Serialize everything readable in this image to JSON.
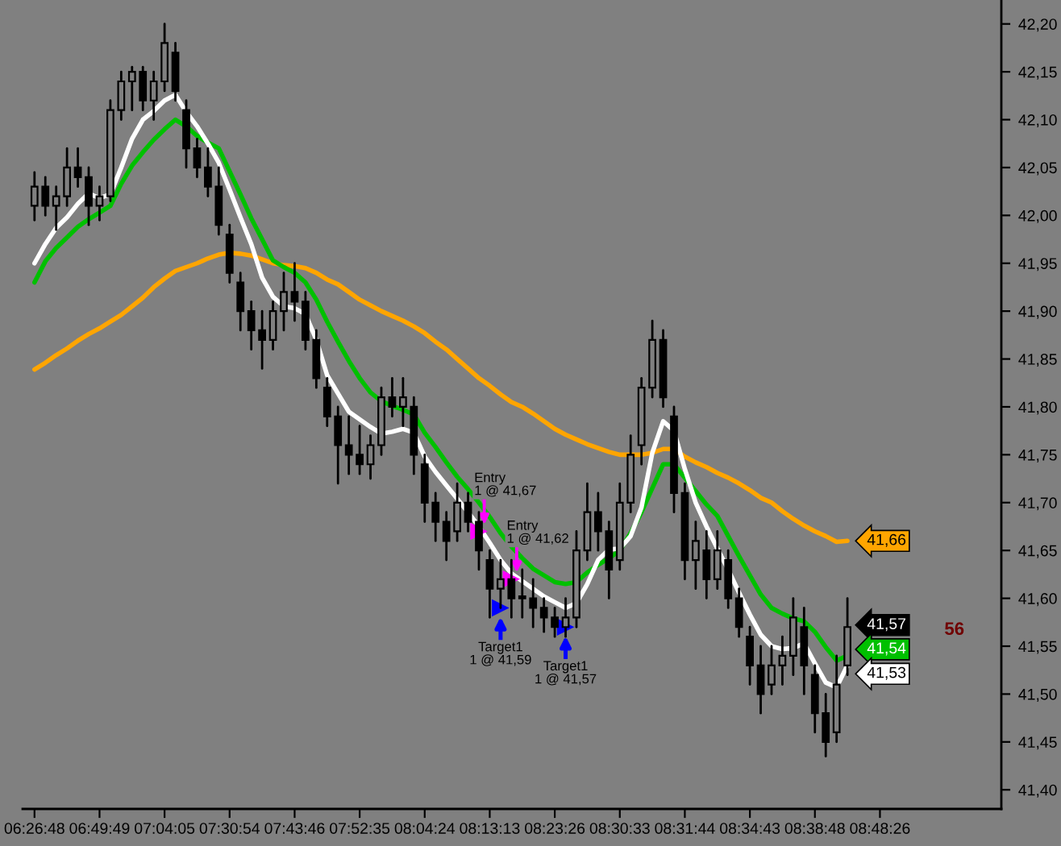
{
  "chart_data": {
    "type": "candlestick",
    "color": "#000000",
    "categories": [
      "06:26:48",
      null,
      null,
      null,
      null,
      null,
      "06:49:49",
      null,
      null,
      null,
      null,
      null,
      "07:04:05",
      null,
      null,
      null,
      null,
      null,
      "07:30:54",
      null,
      null,
      null,
      null,
      null,
      "07:43:46",
      null,
      null,
      null,
      null,
      null,
      "07:52:35",
      null,
      null,
      null,
      null,
      null,
      "08:04:24",
      null,
      null,
      null,
      null,
      null,
      "08:13:13",
      null,
      null,
      null,
      null,
      null,
      "08:23:26",
      null,
      null,
      null,
      null,
      null,
      "08:30:33",
      null,
      null,
      null,
      null,
      null,
      "08:31:44",
      null,
      null,
      null,
      null,
      null,
      "08:34:43",
      null,
      null,
      null,
      null,
      null,
      "08:38:48",
      null,
      null,
      null,
      null,
      null,
      "08:48:26",
      null,
      null,
      null,
      null,
      null,
      null,
      null,
      null,
      null,
      null,
      null
    ],
    "ohlc": [
      [
        42.01,
        42.045,
        41.995,
        42.03
      ],
      [
        42.03,
        42.04,
        42.0,
        42.01
      ],
      [
        42.01,
        42.03,
        41.985,
        42.02
      ],
      [
        42.02,
        42.07,
        42.01,
        42.05
      ],
      [
        42.05,
        42.07,
        42.03,
        42.04
      ],
      [
        42.04,
        42.05,
        41.99,
        42.01
      ],
      [
        42.01,
        42.03,
        41.995,
        42.02
      ],
      [
        42.02,
        42.12,
        42.015,
        42.11
      ],
      [
        42.11,
        42.15,
        42.1,
        42.14
      ],
      [
        42.14,
        42.155,
        42.11,
        42.15
      ],
      [
        42.15,
        42.155,
        42.11,
        42.12
      ],
      [
        42.12,
        42.15,
        42.1,
        42.14
      ],
      [
        42.14,
        42.2,
        42.13,
        42.18
      ],
      [
        42.17,
        42.18,
        42.12,
        42.13
      ],
      [
        42.11,
        42.12,
        42.05,
        42.07
      ],
      [
        42.07,
        42.08,
        42.04,
        42.05
      ],
      [
        42.05,
        42.07,
        42.02,
        42.03
      ],
      [
        42.03,
        42.05,
        41.98,
        41.99
      ],
      [
        41.98,
        41.99,
        41.93,
        41.94
      ],
      [
        41.93,
        41.94,
        41.88,
        41.9
      ],
      [
        41.9,
        41.91,
        41.86,
        41.88
      ],
      [
        41.88,
        41.9,
        41.84,
        41.87
      ],
      [
        41.87,
        41.91,
        41.86,
        41.9
      ],
      [
        41.9,
        41.94,
        41.88,
        41.92
      ],
      [
        41.92,
        41.95,
        41.89,
        41.91
      ],
      [
        41.91,
        41.92,
        41.86,
        41.87
      ],
      [
        41.87,
        41.88,
        41.82,
        41.83
      ],
      [
        41.82,
        41.83,
        41.78,
        41.79
      ],
      [
        41.79,
        41.8,
        41.72,
        41.76
      ],
      [
        41.76,
        41.79,
        41.73,
        41.75
      ],
      [
        41.75,
        41.78,
        41.73,
        41.74
      ],
      [
        41.74,
        41.77,
        41.725,
        41.76
      ],
      [
        41.76,
        41.82,
        41.75,
        41.81
      ],
      [
        41.81,
        41.83,
        41.79,
        41.8
      ],
      [
        41.8,
        41.83,
        41.78,
        41.81
      ],
      [
        41.8,
        41.81,
        41.73,
        41.75
      ],
      [
        41.74,
        41.75,
        41.68,
        41.7
      ],
      [
        41.7,
        41.71,
        41.66,
        41.68
      ],
      [
        41.68,
        41.69,
        41.64,
        41.66
      ],
      [
        41.67,
        41.72,
        41.66,
        41.7
      ],
      [
        41.7,
        41.71,
        41.67,
        41.68
      ],
      [
        41.68,
        41.69,
        41.63,
        41.65
      ],
      [
        41.64,
        41.65,
        41.58,
        41.61
      ],
      [
        41.61,
        41.64,
        41.59,
        41.62
      ],
      [
        41.62,
        41.64,
        41.58,
        41.6
      ],
      [
        41.6,
        41.63,
        41.58,
        41.6
      ],
      [
        41.6,
        41.62,
        41.57,
        41.59
      ],
      [
        41.59,
        41.6,
        41.565,
        41.58
      ],
      [
        41.58,
        41.59,
        41.56,
        41.57
      ],
      [
        41.57,
        41.6,
        41.56,
        41.58
      ],
      [
        41.58,
        41.67,
        41.57,
        41.65
      ],
      [
        41.65,
        41.72,
        41.64,
        41.69
      ],
      [
        41.69,
        41.71,
        41.65,
        41.67
      ],
      [
        41.67,
        41.68,
        41.6,
        41.63
      ],
      [
        41.64,
        41.72,
        41.63,
        41.7
      ],
      [
        41.7,
        41.77,
        41.69,
        41.75
      ],
      [
        41.76,
        41.83,
        41.74,
        41.82
      ],
      [
        41.82,
        41.89,
        41.81,
        41.87
      ],
      [
        41.87,
        41.88,
        41.8,
        41.81
      ],
      [
        41.79,
        41.8,
        41.69,
        41.71
      ],
      [
        41.71,
        41.72,
        41.62,
        41.64
      ],
      [
        41.64,
        41.68,
        41.61,
        41.66
      ],
      [
        41.65,
        41.67,
        41.6,
        41.62
      ],
      [
        41.62,
        41.67,
        41.61,
        41.65
      ],
      [
        41.64,
        41.65,
        41.59,
        41.6
      ],
      [
        41.6,
        41.61,
        41.56,
        41.57
      ],
      [
        41.56,
        41.57,
        41.51,
        41.53
      ],
      [
        41.53,
        41.55,
        41.48,
        41.5
      ],
      [
        41.51,
        41.55,
        41.5,
        41.53
      ],
      [
        41.53,
        41.56,
        41.51,
        41.54
      ],
      [
        41.54,
        41.6,
        41.52,
        41.58
      ],
      [
        41.57,
        41.59,
        41.5,
        41.53
      ],
      [
        41.52,
        41.53,
        41.46,
        41.48
      ],
      [
        41.48,
        41.5,
        41.435,
        41.45
      ],
      [
        41.46,
        41.54,
        41.45,
        41.51
      ],
      [
        41.53,
        41.6,
        41.52,
        41.57
      ],
      null,
      null,
      null,
      null,
      null,
      null,
      null,
      null,
      null,
      null,
      null,
      null,
      null,
      null
    ],
    "value_labels": [
      null,
      null,
      null,
      null,
      null,
      null,
      null,
      null,
      null,
      null,
      null,
      null,
      null,
      null,
      null,
      null,
      null,
      null,
      null,
      null,
      null,
      null,
      null,
      null,
      null,
      null,
      null,
      null,
      null,
      null,
      null,
      null,
      null,
      null,
      null,
      null,
      null,
      null,
      null,
      null,
      null,
      null,
      null,
      null,
      null,
      null,
      null,
      null,
      null,
      null,
      null,
      null,
      null,
      null,
      null,
      null,
      null,
      null,
      null,
      null,
      null,
      null,
      null,
      null,
      null,
      null,
      null,
      null,
      null,
      null,
      null,
      null,
      null,
      null,
      null,
      "41,57",
      null,
      null,
      null,
      null,
      null,
      null,
      null,
      null,
      null,
      null,
      null,
      null,
      null,
      null
    ],
    "series": [
      {
        "type": "line",
        "color": "#ffa500",
        "values": [
          41.839,
          41.846,
          41.854,
          41.861,
          41.869,
          41.876,
          41.882,
          41.889,
          41.896,
          41.905,
          41.914,
          41.925,
          41.934,
          41.942,
          41.946,
          41.95,
          41.955,
          41.959,
          41.961,
          41.96,
          41.958,
          41.954,
          41.95,
          41.948,
          41.947,
          41.945,
          41.94,
          41.933,
          41.928,
          41.92,
          41.912,
          41.906,
          41.9,
          41.895,
          41.89,
          41.884,
          41.877,
          41.868,
          41.86,
          41.85,
          41.84,
          41.83,
          41.822,
          41.813,
          41.805,
          41.8,
          41.793,
          41.785,
          41.777,
          41.771,
          41.766,
          41.761,
          41.757,
          41.753,
          41.75,
          41.75,
          41.75,
          41.752,
          41.756,
          41.756,
          41.748,
          41.742,
          41.737,
          41.731,
          41.726,
          41.72,
          41.713,
          41.705,
          41.7,
          41.691,
          41.683,
          41.676,
          41.67,
          41.665,
          41.659,
          41.66,
          null,
          null,
          null,
          null,
          null,
          null,
          null,
          null,
          null,
          null,
          null,
          null,
          null,
          null
        ],
        "value_labels": [
          null,
          null,
          null,
          null,
          null,
          null,
          null,
          null,
          null,
          null,
          null,
          null,
          null,
          null,
          null,
          null,
          null,
          null,
          null,
          null,
          null,
          null,
          null,
          null,
          null,
          null,
          null,
          null,
          null,
          null,
          null,
          null,
          null,
          null,
          null,
          null,
          null,
          null,
          null,
          null,
          null,
          null,
          null,
          null,
          null,
          null,
          null,
          null,
          null,
          null,
          null,
          null,
          null,
          null,
          null,
          null,
          null,
          null,
          null,
          null,
          null,
          null,
          null,
          null,
          null,
          null,
          null,
          null,
          null,
          null,
          null,
          null,
          null,
          null,
          null,
          "41,66",
          null,
          null,
          null,
          null,
          null,
          null,
          null,
          null,
          null,
          null,
          null,
          null,
          null,
          null
        ]
      },
      {
        "type": "line",
        "color": "#00c000",
        "values": [
          41.93,
          41.952,
          41.966,
          41.977,
          41.988,
          41.996,
          42.003,
          42.01,
          42.033,
          42.052,
          42.066,
          42.079,
          42.09,
          42.1,
          42.093,
          42.083,
          42.076,
          42.07,
          42.046,
          42.022,
          41.997,
          41.975,
          41.953,
          41.946,
          41.94,
          41.93,
          41.912,
          41.889,
          41.868,
          41.848,
          41.83,
          41.815,
          41.806,
          41.801,
          41.797,
          41.792,
          41.773,
          41.758,
          41.742,
          41.727,
          41.714,
          41.7,
          41.685,
          41.668,
          41.654,
          41.642,
          41.631,
          41.624,
          41.617,
          41.615,
          41.617,
          41.627,
          41.635,
          41.642,
          41.65,
          41.668,
          41.69,
          41.715,
          41.74,
          41.74,
          41.726,
          41.712,
          41.698,
          41.686,
          41.665,
          41.644,
          41.624,
          41.604,
          41.59,
          41.584,
          41.579,
          41.576,
          41.565,
          41.549,
          41.535,
          41.54,
          null,
          null,
          null,
          null,
          null,
          null,
          null,
          null,
          null,
          null,
          null,
          null,
          null,
          null
        ],
        "value_labels": [
          null,
          null,
          null,
          null,
          null,
          null,
          null,
          null,
          null,
          null,
          null,
          null,
          null,
          null,
          null,
          null,
          null,
          null,
          null,
          null,
          null,
          null,
          null,
          null,
          null,
          null,
          null,
          null,
          null,
          null,
          null,
          null,
          null,
          null,
          null,
          null,
          null,
          null,
          null,
          null,
          null,
          null,
          null,
          null,
          null,
          null,
          null,
          null,
          null,
          null,
          null,
          null,
          null,
          null,
          null,
          null,
          null,
          null,
          null,
          null,
          null,
          null,
          null,
          null,
          null,
          null,
          null,
          null,
          null,
          null,
          null,
          null,
          null,
          null,
          null,
          "41,54",
          null,
          null,
          null,
          null,
          null,
          null,
          null,
          null,
          null,
          null,
          null,
          null,
          null,
          null
        ]
      },
      {
        "type": "line",
        "color": "#ffffff",
        "values": [
          41.95,
          41.97,
          41.987,
          41.998,
          42.012,
          42.023,
          42.018,
          42.022,
          42.05,
          42.08,
          42.1,
          42.109,
          42.12,
          42.126,
          42.108,
          42.093,
          42.075,
          42.055,
          42.027,
          41.998,
          41.97,
          41.935,
          41.915,
          41.905,
          41.903,
          41.897,
          41.87,
          41.833,
          41.814,
          41.795,
          41.787,
          41.779,
          41.772,
          41.774,
          41.777,
          41.773,
          41.748,
          41.732,
          41.718,
          41.704,
          41.69,
          41.675,
          41.658,
          41.64,
          41.626,
          41.618,
          41.61,
          41.602,
          41.596,
          41.59,
          41.595,
          41.615,
          41.64,
          41.651,
          41.652,
          41.665,
          41.695,
          41.752,
          41.785,
          41.775,
          41.735,
          41.7,
          41.675,
          41.652,
          41.63,
          41.606,
          41.583,
          41.562,
          41.55,
          41.547,
          41.548,
          41.553,
          41.532,
          41.512,
          41.507,
          41.53,
          null,
          null,
          null,
          null,
          null,
          null,
          null,
          null,
          null,
          null,
          null,
          null,
          null,
          null
        ],
        "value_labels": [
          null,
          null,
          null,
          null,
          null,
          null,
          null,
          null,
          null,
          null,
          null,
          null,
          null,
          null,
          null,
          null,
          null,
          null,
          null,
          null,
          null,
          null,
          null,
          null,
          null,
          null,
          null,
          null,
          null,
          null,
          null,
          null,
          null,
          null,
          null,
          null,
          null,
          null,
          null,
          null,
          null,
          null,
          null,
          null,
          null,
          null,
          null,
          null,
          null,
          null,
          null,
          null,
          null,
          null,
          null,
          null,
          null,
          null,
          null,
          null,
          null,
          null,
          null,
          null,
          null,
          null,
          null,
          null,
          null,
          null,
          null,
          null,
          null,
          null,
          null,
          "41,53",
          null,
          null,
          null,
          null,
          null,
          null,
          null,
          null,
          null,
          null,
          null,
          null,
          null,
          null
        ]
      },
      {
        "type": "scatter",
        "marker": "triangle",
        "color": "#ff00ff",
        "values": [
          null,
          null,
          null,
          null,
          null,
          null,
          null,
          null,
          null,
          null,
          null,
          null,
          null,
          null,
          null,
          null,
          null,
          null,
          null,
          null,
          null,
          null,
          null,
          null,
          null,
          null,
          null,
          null,
          null,
          null,
          null,
          null,
          null,
          null,
          null,
          null,
          null,
          null,
          null,
          null,
          null,
          41.67,
          null,
          null,
          41.62,
          null,
          null,
          null,
          null,
          null,
          null,
          null,
          null,
          null,
          null,
          null,
          null,
          null,
          null,
          null,
          null,
          null,
          null,
          null,
          null,
          null,
          null,
          null,
          null,
          null,
          null,
          null,
          null,
          null,
          null,
          null,
          null,
          null,
          null,
          null,
          null,
          null,
          null,
          null,
          null,
          null,
          null,
          null,
          null,
          null
        ]
      },
      {
        "type": "scatter",
        "marker": "triangle",
        "color": "#0000ff",
        "values": [
          null,
          null,
          null,
          null,
          null,
          null,
          null,
          null,
          null,
          null,
          null,
          null,
          null,
          null,
          null,
          null,
          null,
          null,
          null,
          null,
          null,
          null,
          null,
          null,
          null,
          null,
          null,
          null,
          null,
          null,
          null,
          null,
          null,
          null,
          null,
          null,
          null,
          null,
          null,
          null,
          null,
          null,
          null,
          41.59,
          null,
          null,
          null,
          null,
          null,
          41.57,
          null,
          null,
          null,
          null,
          null,
          null,
          null,
          null,
          null,
          null,
          null,
          null,
          null,
          null,
          null,
          null,
          null,
          null,
          null,
          null,
          null,
          null,
          null,
          null,
          null,
          null,
          null,
          null,
          null,
          null,
          null,
          null,
          null,
          null,
          null,
          null,
          null,
          null,
          null,
          null
        ]
      }
    ],
    "ylim": [
      41.38,
      42.225
    ],
    "yticks": [
      {
        "value": 41.4,
        "label": "41,40"
      },
      {
        "value": 41.45,
        "label": "41,45"
      },
      {
        "value": 41.5,
        "label": "41,50"
      },
      {
        "value": 41.55,
        "label": "41,55"
      },
      {
        "value": 41.6,
        "label": "41,60"
      },
      {
        "value": 41.65,
        "label": "41,65"
      },
      {
        "value": 41.7,
        "label": "41,70"
      },
      {
        "value": 41.75,
        "label": "41,75"
      },
      {
        "value": 41.8,
        "label": "41,80"
      },
      {
        "value": 41.85,
        "label": "41,85"
      },
      {
        "value": 41.9,
        "label": "41,90"
      },
      {
        "value": 41.95,
        "label": "41,95"
      },
      {
        "value": 42.0,
        "label": "42,00"
      },
      {
        "value": 42.05,
        "label": "42,05"
      },
      {
        "value": 42.1,
        "label": "42,10"
      },
      {
        "value": 42.15,
        "label": "42,15"
      },
      {
        "value": 42.2,
        "label": "42,20"
      }
    ],
    "annotations": [
      {
        "text": "Entry\n1 @ 41,67",
        "y": 41.67
      },
      {
        "text": "Entry\n1 @ 41,62",
        "y": 41.62
      },
      {
        "text": "Target1\n1 @ 41,59",
        "y": 41.59
      },
      {
        "text": "Target1\n1 @ 41,57",
        "y": 41.57
      },
      "56"
    ]
  }
}
